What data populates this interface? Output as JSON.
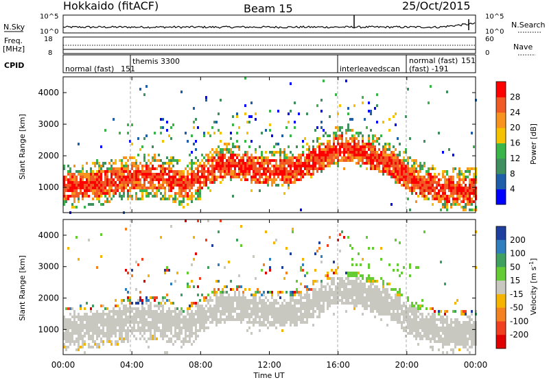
{
  "header": {
    "station": "Hokkaido (fitACF)",
    "beam": "Beam 15",
    "date": "25/Oct/2015"
  },
  "top_panels": {
    "nsky_label": "N.Sky",
    "nsky_ticks": [
      "10^5",
      "10^0"
    ],
    "nsearch_label": "N.Search",
    "nsearch_ticks": [
      "10^5",
      "10^0"
    ],
    "freq_label_1": "Freq.",
    "freq_label_2": "[MHz]",
    "freq_ticks": [
      "18",
      "8"
    ],
    "nave_label": "Nave",
    "nave_ticks": [
      "60",
      "0"
    ],
    "cpid_label": "CPID"
  },
  "cpid_segments": [
    {
      "label": "normal (fast)",
      "start_h": 0
    },
    {
      "label": "151",
      "start_h": 3.5
    },
    {
      "label": "themis 3300",
      "start_h": 4.0
    },
    {
      "label": "interleavedscan",
      "start_h": 16.0
    },
    {
      "label": "normal (fast)",
      "start_h": 20.0
    },
    {
      "label": "(fast) -191",
      "start_h": 20.0
    },
    {
      "label": "151",
      "start_h": 23.7
    }
  ],
  "time_axis": {
    "label": "Time UT",
    "ticks": [
      "00:00",
      "04:00",
      "08:00",
      "12:00",
      "16:00",
      "20:00",
      "00:00"
    ]
  },
  "colors": {
    "power_scale": [
      "#0000ff",
      "#1f5faa",
      "#3f8f5f",
      "#39b54a",
      "#f5c200",
      "#f7931e",
      "#f15a24",
      "#ff0000"
    ],
    "velocity_scale": [
      "#1f3f9f",
      "#2f7fbf",
      "#3fa05f",
      "#66cc33",
      "#c8c8c0",
      "#f5b400",
      "#f58220",
      "#f04020",
      "#e00000"
    ],
    "ground": "#c8c8c0"
  },
  "chart_data": [
    {
      "type": "heatmap",
      "title": "Power",
      "ylabel": "Slant Range [km]",
      "xlabel": "",
      "ylim": [
        200,
        4500
      ],
      "xlim_hours": [
        0,
        24
      ],
      "y_ticks": [
        "1000",
        "2000",
        "3000",
        "4000"
      ],
      "colorbar_label": "Power [dB]",
      "colorbar_ticks": [
        "4",
        "8",
        "12",
        "16",
        "20",
        "24",
        "28"
      ],
      "main_echo_track": {
        "x": [
          0,
          2,
          4,
          5,
          6,
          7,
          8,
          9,
          10,
          11,
          12,
          13,
          14,
          15,
          16,
          17,
          18,
          19,
          20,
          21,
          22,
          23,
          24
        ],
        "y": [
          1050,
          1150,
          1350,
          1400,
          1350,
          1100,
          1400,
          1700,
          1750,
          1600,
          1550,
          1550,
          1700,
          2000,
          2300,
          2200,
          2000,
          1800,
          1350,
          1100,
          1000,
          950,
          950
        ]
      }
    },
    {
      "type": "heatmap",
      "title": "Velocity",
      "ylabel": "Slant Range [km]",
      "xlabel": "Time UT",
      "ylim": [
        200,
        4500
      ],
      "xlim_hours": [
        0,
        24
      ],
      "y_ticks": [
        "1000",
        "2000",
        "3000",
        "4000"
      ],
      "colorbar_label": "Velocity [m s^-1]",
      "colorbar_ticks": [
        "200",
        "100",
        "50",
        "15",
        "-15",
        "-50",
        "-100",
        "-200"
      ]
    }
  ]
}
